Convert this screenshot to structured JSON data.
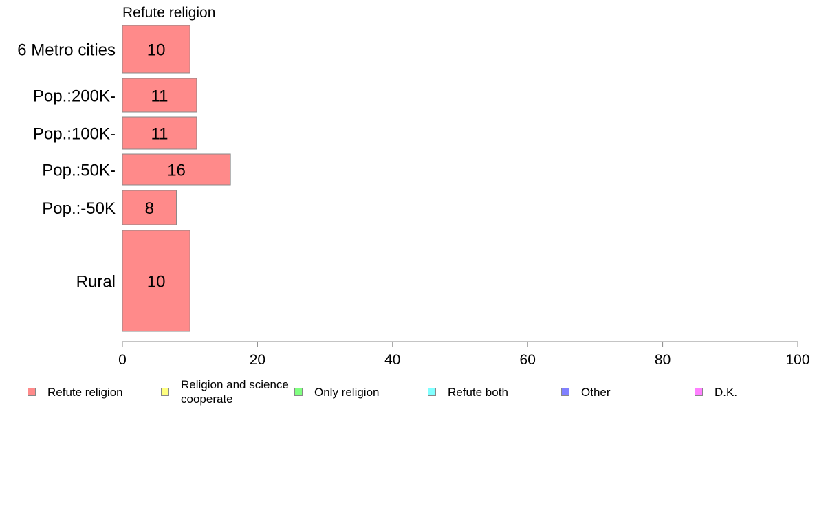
{
  "chart_data": {
    "type": "bar",
    "orientation": "horizontal",
    "title": "Refute religion",
    "categories": [
      "6 Metro cities",
      "Pop.:200K-",
      "Pop.:100K-",
      "Pop.:50K-",
      "Pop.:-50K",
      "Rural"
    ],
    "values": [
      10,
      11,
      11,
      16,
      8,
      10
    ],
    "value_labels": [
      "10",
      "11",
      "11",
      "16",
      "8",
      "10"
    ],
    "series_color": "#ff8a8a",
    "xlim": [
      0,
      100
    ],
    "xticks": [
      0,
      20,
      40,
      60,
      80,
      100
    ],
    "xtick_labels": [
      "0",
      "20",
      "40",
      "60",
      "80",
      "100"
    ],
    "grid": false,
    "legend_placement": "bottom",
    "legend": [
      {
        "label": "Refute religion",
        "color": "#ff8a8a"
      },
      {
        "label": "Religion and science cooperate",
        "color": "#ffff80"
      },
      {
        "label": "Only religion",
        "color": "#80ff80"
      },
      {
        "label": "Refute both",
        "color": "#80ffff"
      },
      {
        "label": "Other",
        "color": "#8080ff"
      },
      {
        "label": "D.K.",
        "color": "#ff80ff"
      }
    ]
  }
}
